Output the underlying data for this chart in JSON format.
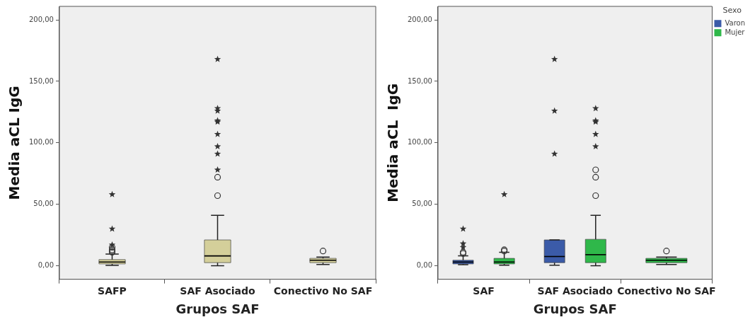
{
  "chart_data": [
    {
      "type": "box",
      "categories": [
        "SAFP",
        "SAF Asociado",
        "Conectivo No SAF"
      ],
      "xlabel": "Grupos SAF",
      "ylabel": "Media aCL IgG",
      "color": "#d4cf9a",
      "boxes": [
        {
          "low": 0.3,
          "q1": 1.5,
          "median": 3,
          "q3": 5,
          "high": 9.5,
          "outliers": [
            11,
            12,
            13,
            15,
            17,
            30,
            58
          ]
        },
        {
          "low": 0,
          "q1": 2.5,
          "median": 8,
          "q3": 21,
          "high": 41,
          "outliers": [
            57,
            72,
            78,
            91,
            97,
            107,
            117,
            118,
            126,
            128,
            168
          ]
        },
        {
          "low": 1,
          "q1": 2.5,
          "median": 4.5,
          "q3": 6,
          "high": 7,
          "outliers": [
            12
          ]
        }
      ],
      "ylim": [
        -11,
        211
      ],
      "yticks": [
        {
          "value": 0,
          "label": "0,00"
        },
        {
          "value": 50,
          "label": "50,00"
        },
        {
          "value": 100,
          "label": "100,00"
        },
        {
          "value": 150,
          "label": "150,00"
        },
        {
          "value": 200,
          "label": "200,00"
        }
      ],
      "grid": false,
      "legend": false
    },
    {
      "type": "box",
      "categories": [
        "SAF",
        "SAF Asociado",
        "Conectivo No SAF"
      ],
      "xlabel": "Grupos SAF",
      "ylabel": "Media aCL  IgG",
      "legend_title": "Sexo",
      "series": [
        {
          "name": "Varon",
          "color": "#3b5ba8",
          "boxes": [
            {
              "low": 0.8,
              "q1": 1.5,
              "median": 3,
              "q3": 4.5,
              "high": 8,
              "outliers": [
                10,
                11,
                15,
                18,
                30
              ]
            },
            {
              "low": 0.5,
              "q1": 2.5,
              "median": 7.5,
              "q3": 21,
              "high": 21,
              "outliers": [
                91,
                126,
                168
              ]
            },
            null
          ]
        },
        {
          "name": "Mujer",
          "color": "#2fb84a",
          "boxes": [
            {
              "low": 0.5,
              "q1": 1.5,
              "median": 3,
              "q3": 6,
              "high": 11,
              "outliers": [
                12,
                13,
                58
              ]
            },
            {
              "low": 0,
              "q1": 2.5,
              "median": 9,
              "q3": 21.5,
              "high": 41,
              "outliers": [
                57,
                72,
                78,
                97,
                107,
                117,
                118,
                128
              ]
            },
            {
              "low": 1,
              "q1": 2.5,
              "median": 4.5,
              "q3": 6,
              "high": 7,
              "outliers": [
                12
              ]
            }
          ]
        }
      ],
      "ylim": [
        -11,
        211
      ],
      "yticks": [
        {
          "value": 0,
          "label": "0,00"
        },
        {
          "value": 50,
          "label": "50,00"
        },
        {
          "value": 100,
          "label": "100,00"
        },
        {
          "value": 150,
          "label": "150,00"
        },
        {
          "value": 200,
          "label": "200,00"
        }
      ],
      "grid": false,
      "legend": "top right"
    }
  ]
}
